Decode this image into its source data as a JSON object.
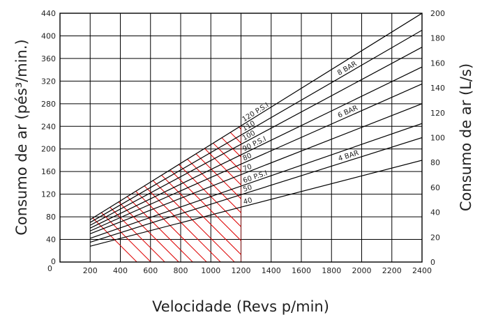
{
  "chart_data": {
    "type": "line",
    "title": "",
    "xlabel": "Velocidade (Revs p/min)",
    "ylabel_left": "Consumo de ar (pés³/min.)",
    "ylabel_right": "Consumo de ar (L/s)",
    "xlim": [
      0,
      2400
    ],
    "ylim_left": [
      0,
      440
    ],
    "ylim_right": [
      0,
      200
    ],
    "grid": true,
    "x_ticks": [
      "200",
      "400",
      "600",
      "800",
      "1000",
      "1200",
      "1400",
      "1600",
      "1800",
      "2000",
      "2200",
      "2400"
    ],
    "x_origin_label": "0",
    "y_left_ticks": [
      "40",
      "80",
      "120",
      "160",
      "200",
      "240",
      "280",
      "320",
      "360",
      "400",
      "440"
    ],
    "y_left_origin_label": "0",
    "y_right_ticks": [
      "0",
      "20",
      "40",
      "60",
      "80",
      "100",
      "120",
      "140",
      "160",
      "180",
      "200"
    ],
    "colors": {
      "lines": "#000000",
      "grid": "#000000",
      "hatch": "#dd0000"
    },
    "series": [
      {
        "name": "120 P.S.I",
        "x": [
          200,
          2400
        ],
        "y": [
          75,
          440
        ]
      },
      {
        "name": "110",
        "x": [
          200,
          2400
        ],
        "y": [
          70,
          410
        ]
      },
      {
        "name": "100",
        "x": [
          200,
          2400
        ],
        "y": [
          65,
          380
        ]
      },
      {
        "name": "90 P.S.I",
        "x": [
          200,
          2400
        ],
        "y": [
          60,
          345
        ]
      },
      {
        "name": "80",
        "x": [
          200,
          2400
        ],
        "y": [
          55,
          315
        ]
      },
      {
        "name": "70",
        "x": [
          200,
          2400
        ],
        "y": [
          50,
          280
        ]
      },
      {
        "name": "60 P.S.I",
        "x": [
          200,
          2400
        ],
        "y": [
          42,
          245
        ]
      },
      {
        "name": "50",
        "x": [
          200,
          2400
        ],
        "y": [
          35,
          220
        ]
      },
      {
        "name": "40",
        "x": [
          200,
          2400
        ],
        "y": [
          28,
          180
        ]
      }
    ],
    "bar_labels": [
      {
        "text": "8 BAR",
        "series_index": 1,
        "x": 1850
      },
      {
        "text": "6 BAR",
        "series_index": 4,
        "x": 1850
      },
      {
        "text": "4 BAR",
        "series_index": 7,
        "x": 1850
      }
    ],
    "hatched_region": {
      "x_range": [
        200,
        1200
      ],
      "y_min": 0,
      "series_envelope": "120 P.S.I"
    }
  }
}
